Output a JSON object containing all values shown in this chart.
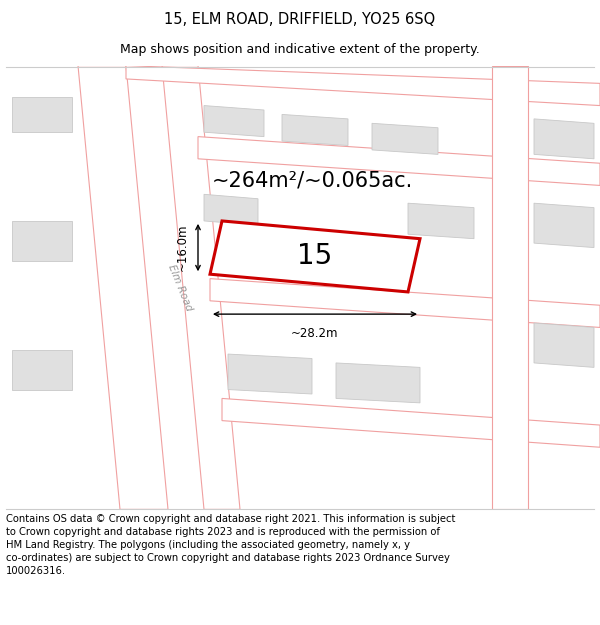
{
  "title_line1": "15, ELM ROAD, DRIFFIELD, YO25 6SQ",
  "title_line2": "Map shows position and indicative extent of the property.",
  "footer_text": "Contains OS data © Crown copyright and database right 2021. This information is subject\nto Crown copyright and database rights 2023 and is reproduced with the permission of\nHM Land Registry. The polygons (including the associated geometry, namely x, y\nco-ordinates) are subject to Crown copyright and database rights 2023 Ordnance Survey\n100026316.",
  "area_label": "~264m²/~0.065ac.",
  "width_label": "~28.2m",
  "height_label": "~16.0m",
  "plot_number": "15",
  "road_label": "Elm Road",
  "background_color": "#ffffff",
  "map_bg_color": "#ffffff",
  "building_fill_color": "#e0e0e0",
  "road_line_color": "#f0a0a0",
  "plot_outline_color": "#cc0000",
  "title_fontsize": 10.5,
  "subtitle_fontsize": 9,
  "footer_fontsize": 7.2,
  "area_label_fontsize": 15,
  "plot_number_fontsize": 20,
  "road_label_fontsize": 7.5,
  "dim_label_fontsize": 8.5
}
